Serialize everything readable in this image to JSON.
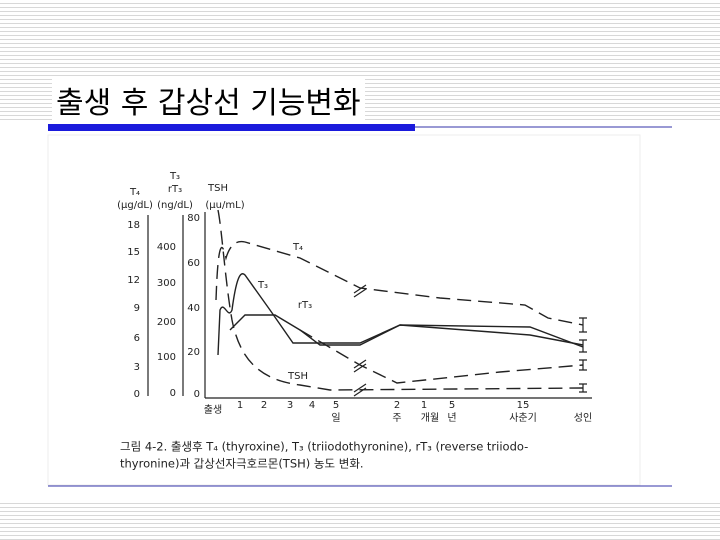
{
  "title": "출생 후 갑상선 기능변화",
  "figure": {
    "axis_headers": {
      "t4": [
        "T₄",
        "(μg/dL)"
      ],
      "t3": [
        "T₃",
        "rT₃",
        "(ng/dL)"
      ],
      "tsh": [
        "TSH",
        "(μu/mL)"
      ]
    },
    "t4_ticks": [
      "18",
      "15",
      "12",
      "9",
      "6",
      "3",
      "0"
    ],
    "t3_ticks": [
      "400",
      "300",
      "200",
      "100",
      "0"
    ],
    "tsh_ticks": [
      "80",
      "60",
      "40",
      "20",
      "0"
    ],
    "curve_labels": [
      "T₄",
      "T₃",
      "rT₃",
      "TSH"
    ],
    "x_labels": [
      "출생",
      "1",
      "2",
      "3",
      "4",
      "5",
      "일",
      "2",
      "주",
      "1",
      "5",
      "개월",
      "년",
      "15",
      "사춘기",
      "성인"
    ],
    "caption": [
      "그림 4-2. 출생후 T₄ (thyroxine), T₃ (triiodothyronine), rT₃ (reverse triiodo-",
      "thyronine)과 갑상선자극호르몬(TSH) 농도 변화."
    ]
  }
}
